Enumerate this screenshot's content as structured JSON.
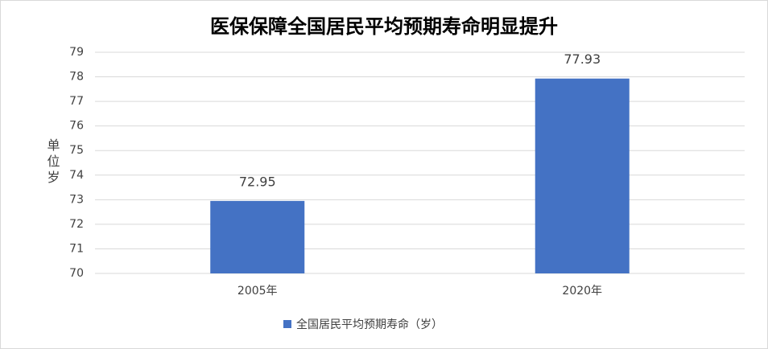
{
  "chart_data": {
    "type": "bar",
    "title": "医保保障全国居民平均预期寿命明显提升",
    "y_label": "单位岁",
    "categories": [
      "2005年",
      "2020年"
    ],
    "series": [
      {
        "name": "全国居民平均预期寿命（岁）",
        "color": "#4472c4",
        "values": [
          72.95,
          77.93
        ]
      }
    ],
    "ylim": [
      70,
      79
    ],
    "yticks": [
      70,
      71,
      72,
      73,
      74,
      75,
      76,
      77,
      78,
      79
    ],
    "grid": true,
    "legend": "bottom"
  }
}
